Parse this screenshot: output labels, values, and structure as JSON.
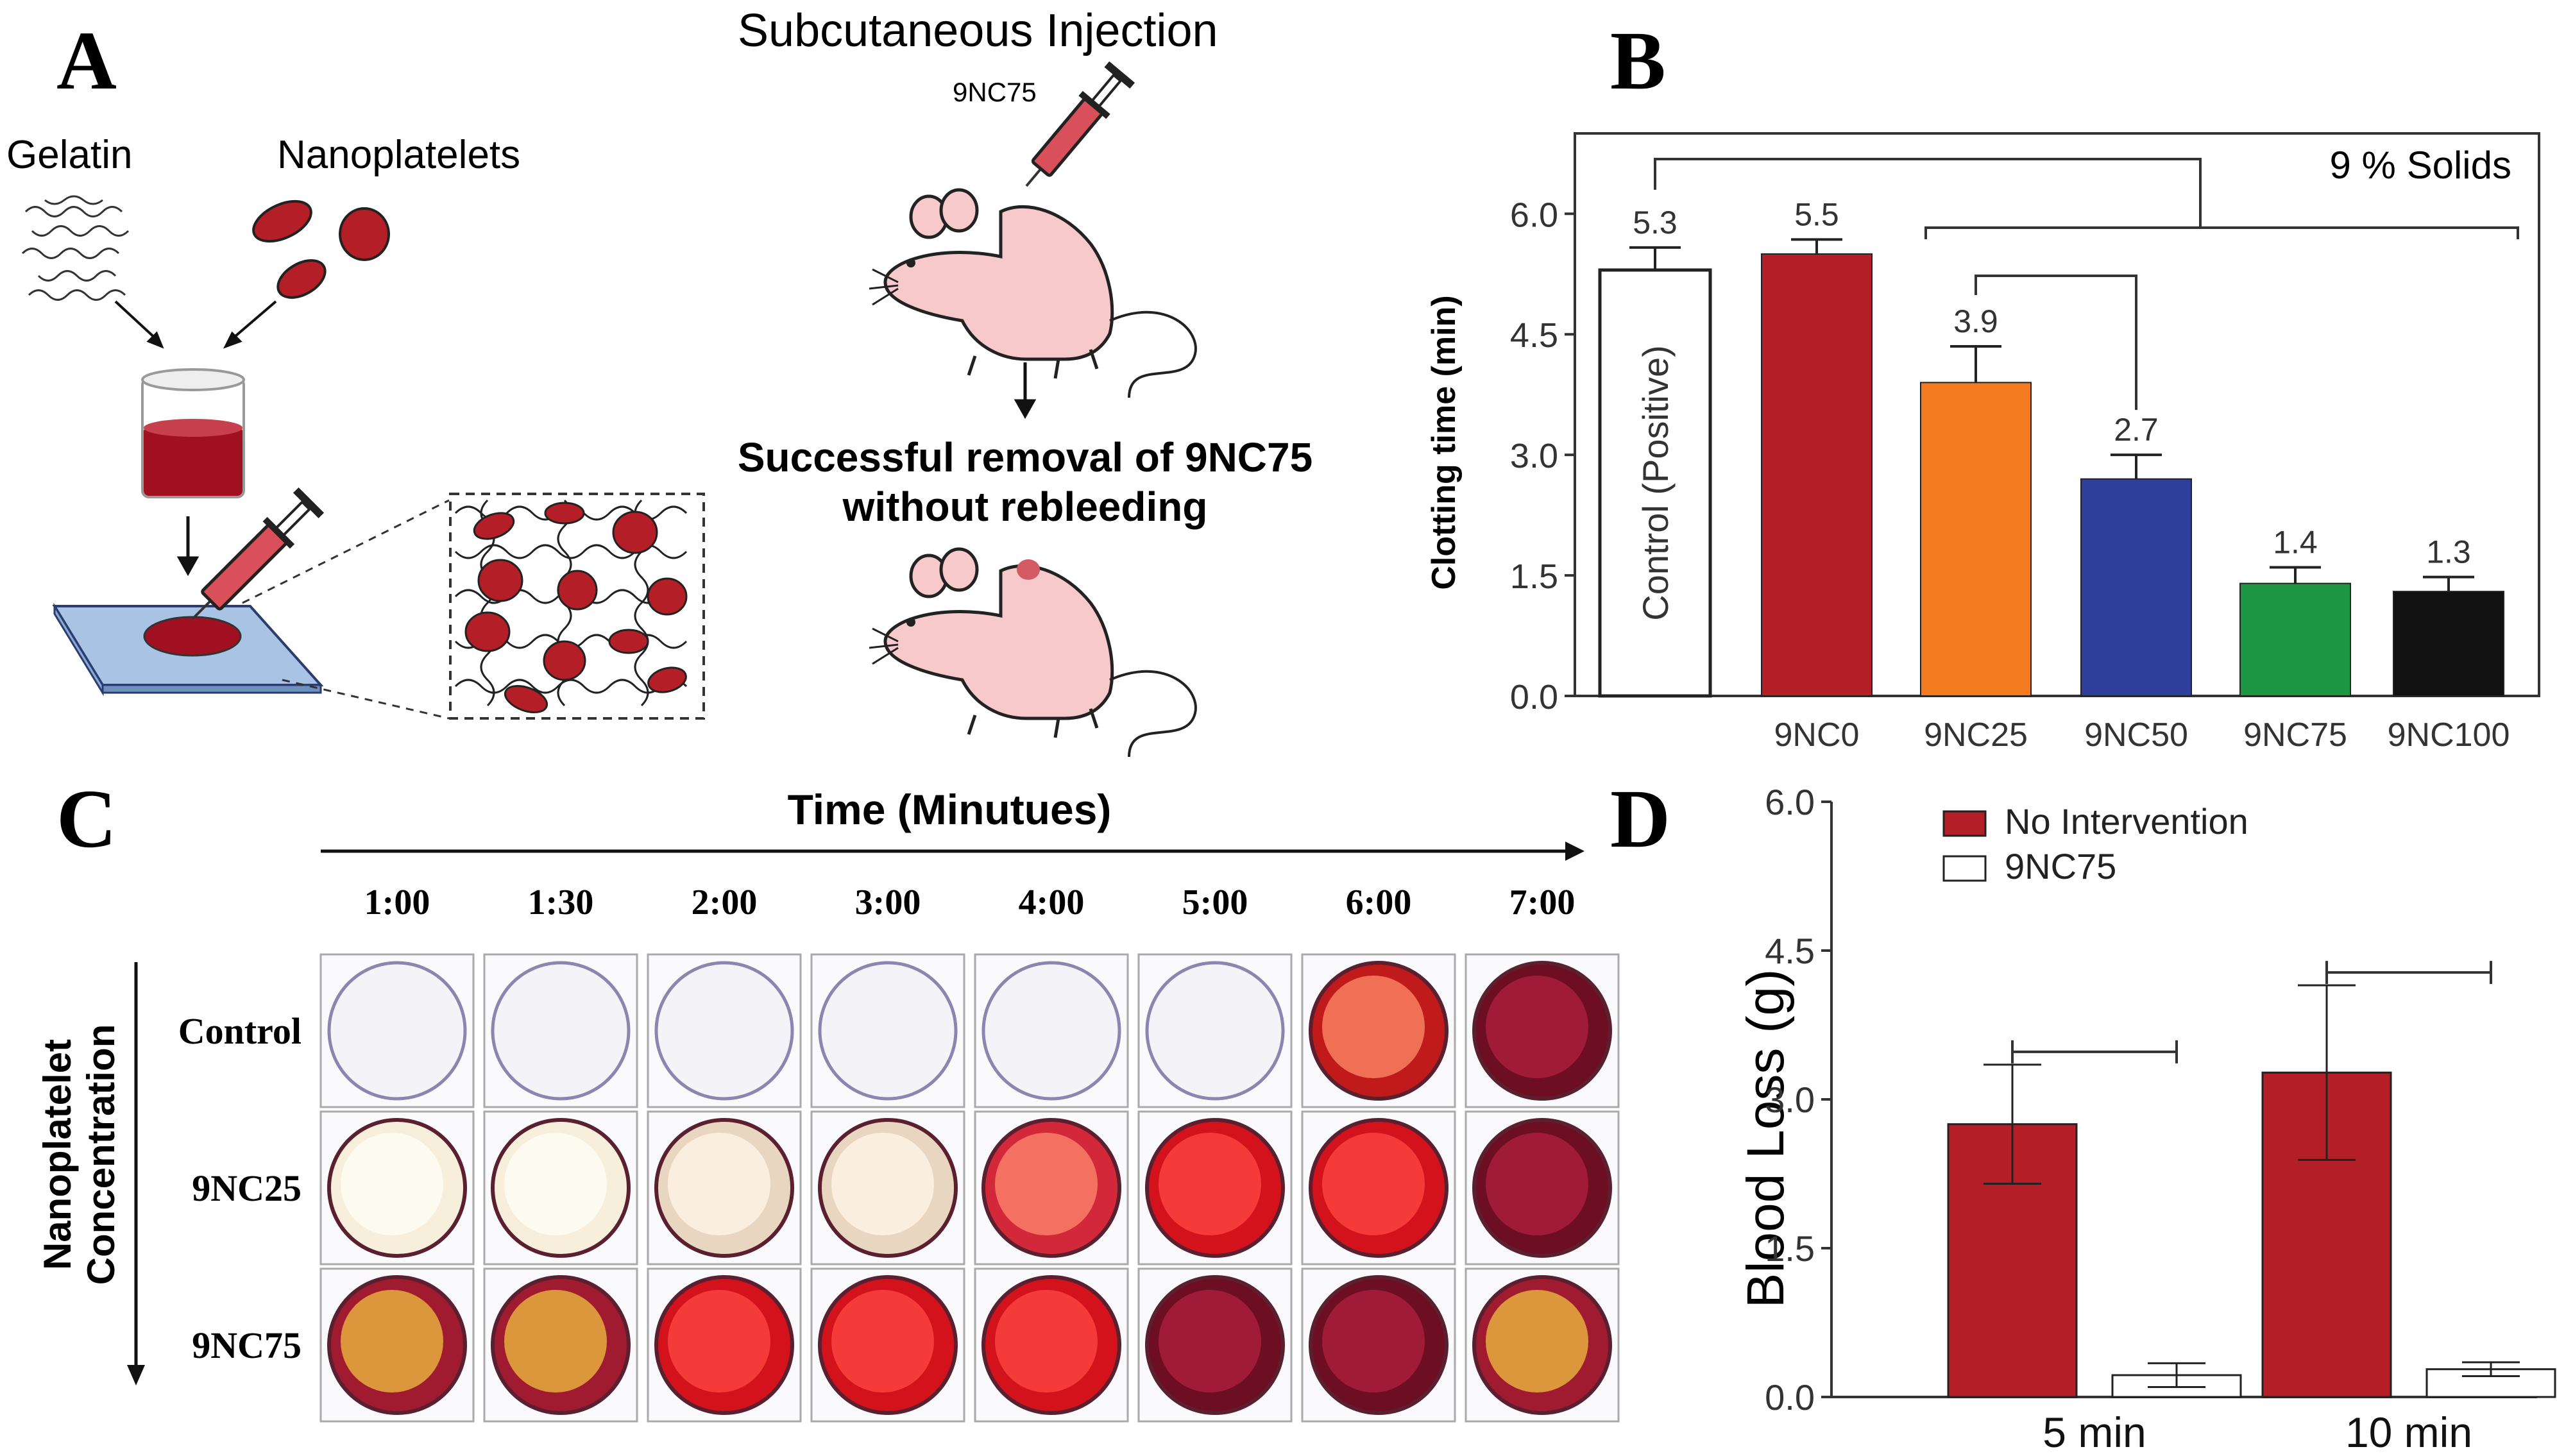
{
  "colors": {
    "red": "#B31E27",
    "orange": "#F47B20",
    "blue": "#2E3E9A",
    "green": "#1C9642",
    "black": "#111111",
    "white": "#FFFFFF",
    "blood_red": "#A01020",
    "plate": "#A9C3E4",
    "mouse_pink": "#F7C9CB"
  },
  "panel_a": {
    "label": "A",
    "gelatin_label": "Gelatin",
    "nanoplatelets_label": "Nanoplatelets",
    "injection_title": "Subcutaneous Injection",
    "syringe_label": "9NC75",
    "result_line1": "Successful removal of 9NC75",
    "result_line2": "without rebleeding",
    "icons": [
      "gelatin-strands-icon",
      "nanoplatelet-discs-icon",
      "beaker-icon",
      "syringe-icon",
      "glass-plate-icon",
      "hydrogel-network-icon",
      "mouse-icon"
    ]
  },
  "panel_b": {
    "label": "B",
    "solids_label": "9 % Solids",
    "control_bar_text": "Control (Positive)"
  },
  "panel_c": {
    "label": "C",
    "time_title": "Time (Minutues)",
    "side_title_line1": "Nanoplatelet",
    "side_title_line2": "Concentration",
    "times": [
      "1:00",
      "1:30",
      "2:00",
      "3:00",
      "4:00",
      "5:00",
      "6:00",
      "7:00"
    ],
    "rows": [
      {
        "name": "Control",
        "wells": [
          "clear",
          "clear",
          "clear",
          "clear",
          "clear",
          "clear",
          "bright-red",
          "dark-red"
        ]
      },
      {
        "name": "9NC25",
        "wells": [
          "cream",
          "cream",
          "cream-stained",
          "cream-stained",
          "orange-red",
          "red",
          "red",
          "dark-red"
        ]
      },
      {
        "name": "9NC75",
        "wells": [
          "mottled",
          "mottled",
          "red",
          "red",
          "red",
          "dark-red",
          "dark-red",
          "mottled"
        ]
      }
    ]
  },
  "panel_d": {
    "label": "D"
  },
  "chart_data": [
    {
      "type": "bar",
      "title": "",
      "xlabel": "",
      "ylabel": "Clotting time (min)",
      "ylim": [
        0,
        7
      ],
      "yticks": [
        "0.0",
        "1.5",
        "3.0",
        "4.5",
        "6.0"
      ],
      "categories": [
        "",
        "9NC0",
        "9NC25",
        "9NC50",
        "9NC75",
        "9NC100"
      ],
      "values": [
        5.3,
        5.5,
        3.9,
        2.7,
        1.4,
        1.3
      ],
      "value_labels": [
        "5.3",
        "5.5",
        "3.9",
        "2.7",
        "1.4",
        "1.3"
      ],
      "errors": [
        0.28,
        0.18,
        0.45,
        0.3,
        0.2,
        0.18
      ],
      "bar_colors": [
        "#FFFFFF",
        "#B31E27",
        "#F47B20",
        "#2E3E9A",
        "#1C9642",
        "#111111"
      ],
      "brackets": [
        [
          0,
          5
        ],
        [
          2,
          3
        ]
      ]
    },
    {
      "type": "bar",
      "title": "",
      "xlabel": "",
      "ylabel": "Blood Loss  (g)",
      "ylim": [
        0,
        6
      ],
      "yticks": [
        "0.0",
        "1.5",
        "3.0",
        "4.5",
        "6.0"
      ],
      "categories": [
        "5 min",
        "10 min"
      ],
      "series": [
        {
          "name": "No Intervention",
          "values": [
            2.75,
            3.27
          ],
          "errors": [
            0.6,
            0.88
          ],
          "color": "#B31E27"
        },
        {
          "name": "9NC75",
          "values": [
            0.22,
            0.28
          ],
          "errors": [
            0.12,
            0.07
          ],
          "color": "#FFFFFF"
        }
      ]
    }
  ]
}
